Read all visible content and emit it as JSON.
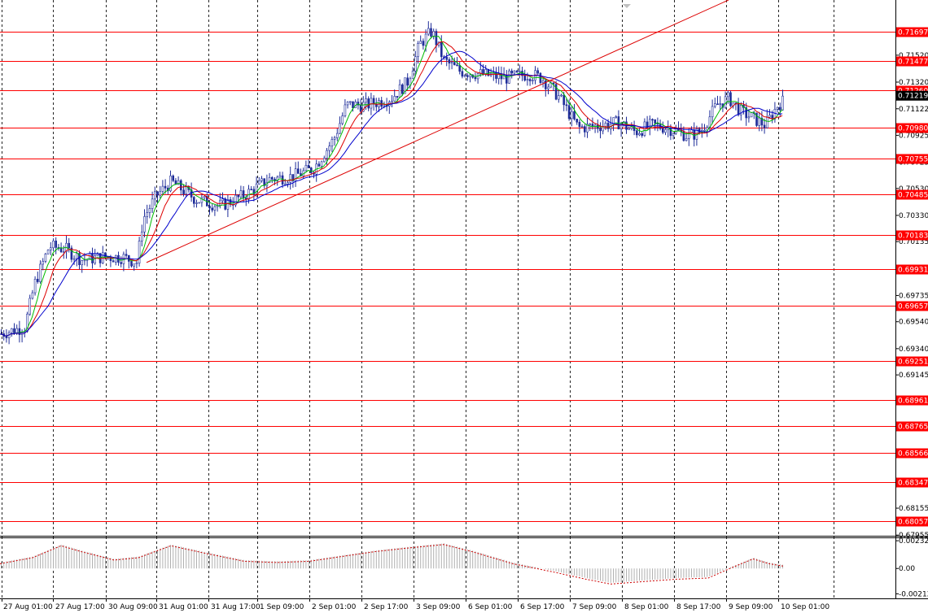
{
  "chart_data": {
    "type": "candlestick",
    "y_axis_labels": [
      "0.71520",
      "0.71320",
      "0.71219",
      "0.71122",
      "0.70925",
      "0.70725",
      "0.70530",
      "0.70330",
      "0.70135",
      "0.69735",
      "0.69540",
      "0.69340",
      "0.69145",
      "0.68945",
      "0.68750",
      "0.68550",
      "0.68355",
      "0.68155",
      "0.67955"
    ],
    "current_price": "0.71219",
    "levels": [
      "0.71697",
      "0.71477",
      "0.71260",
      "0.70980",
      "0.70755",
      "0.70485",
      "0.70183",
      "0.69931",
      "0.69657",
      "0.69251",
      "0.68961",
      "0.68765",
      "0.68566",
      "0.68347",
      "0.68057"
    ],
    "x_labels": [
      "27 Aug 01:00",
      "27 Aug 17:00",
      "30 Aug 09:00",
      "31 Aug 01:00",
      "31 Aug 17:00",
      "1 Sep 09:00",
      "2 Sep 01:00",
      "2 Sep 17:00",
      "3 Sep 09:00",
      "6 Sep 01:00",
      "6 Sep 17:00",
      "7 Sep 09:00",
      "8 Sep 01:00",
      "8 Sep 17:00",
      "9 Sep 09:00",
      "10 Sep 01:00"
    ],
    "ylim": [
      0.6795,
      0.7193
    ],
    "price_path": [
      [
        0,
        0.6945
      ],
      [
        30,
        0.695
      ],
      [
        42,
        0.6982
      ],
      [
        60,
        0.701
      ],
      [
        80,
        0.7008
      ],
      [
        100,
        0.7
      ],
      [
        125,
        0.7002
      ],
      [
        150,
        0.7002
      ],
      [
        168,
        0.6998
      ],
      [
        175,
        0.703
      ],
      [
        192,
        0.7048
      ],
      [
        210,
        0.7058
      ],
      [
        240,
        0.7045
      ],
      [
        270,
        0.704
      ],
      [
        300,
        0.7048
      ],
      [
        330,
        0.706
      ],
      [
        360,
        0.7062
      ],
      [
        385,
        0.7068
      ],
      [
        410,
        0.709
      ],
      [
        425,
        0.7115
      ],
      [
        450,
        0.7115
      ],
      [
        480,
        0.712
      ],
      [
        500,
        0.7132
      ],
      [
        515,
        0.716
      ],
      [
        530,
        0.717
      ],
      [
        545,
        0.7148
      ],
      [
        565,
        0.714
      ],
      [
        590,
        0.7138
      ],
      [
        620,
        0.7135
      ],
      [
        650,
        0.7138
      ],
      [
        665,
        0.7135
      ],
      [
        685,
        0.7122
      ],
      [
        710,
        0.7098
      ],
      [
        740,
        0.71
      ],
      [
        760,
        0.7102
      ],
      [
        780,
        0.7095
      ],
      [
        800,
        0.71
      ],
      [
        820,
        0.7098
      ],
      [
        845,
        0.7092
      ],
      [
        860,
        0.7095
      ],
      [
        880,
        0.7115
      ],
      [
        895,
        0.712
      ],
      [
        910,
        0.711
      ],
      [
        925,
        0.7105
      ],
      [
        940,
        0.71
      ],
      [
        955,
        0.7115
      ],
      [
        962,
        0.7118
      ]
    ],
    "indicator_labels": [
      "0.00232",
      "0.00",
      "-0.00212"
    ],
    "indicator_ylim": [
      -0.0025,
      0.0026
    ],
    "oscillator_path": [
      [
        0,
        0.0005
      ],
      [
        40,
        0.001
      ],
      [
        75,
        0.002
      ],
      [
        100,
        0.0015
      ],
      [
        140,
        0.0008
      ],
      [
        170,
        0.001
      ],
      [
        210,
        0.002
      ],
      [
        250,
        0.0014
      ],
      [
        300,
        0.0007
      ],
      [
        340,
        0.0006
      ],
      [
        380,
        0.0007
      ],
      [
        420,
        0.0011
      ],
      [
        460,
        0.0015
      ],
      [
        500,
        0.0018
      ],
      [
        545,
        0.0021
      ],
      [
        580,
        0.0015
      ],
      [
        630,
        0.0005
      ],
      [
        680,
        -0.0002
      ],
      [
        720,
        -0.0008
      ],
      [
        750,
        -0.0012
      ],
      [
        790,
        -0.001
      ],
      [
        830,
        -0.0008
      ],
      [
        870,
        -0.0007
      ],
      [
        900,
        0.0002
      ],
      [
        925,
        0.0009
      ],
      [
        945,
        0.0005
      ],
      [
        962,
        0.0003
      ]
    ],
    "colors": {
      "level": "#ff0000",
      "level_label_bg": "#ff0000",
      "current_label_bg": "#000000",
      "candle": "#1f2d99",
      "ma_fast": "#00bb00",
      "ma_mid": "#dd0000",
      "ma_slow": "#0000cc",
      "trendline": "#dd0000",
      "osc_line": "#cc0000",
      "osc_hist": "#b0b0b0",
      "grid": "#000000"
    },
    "grid": true
  }
}
